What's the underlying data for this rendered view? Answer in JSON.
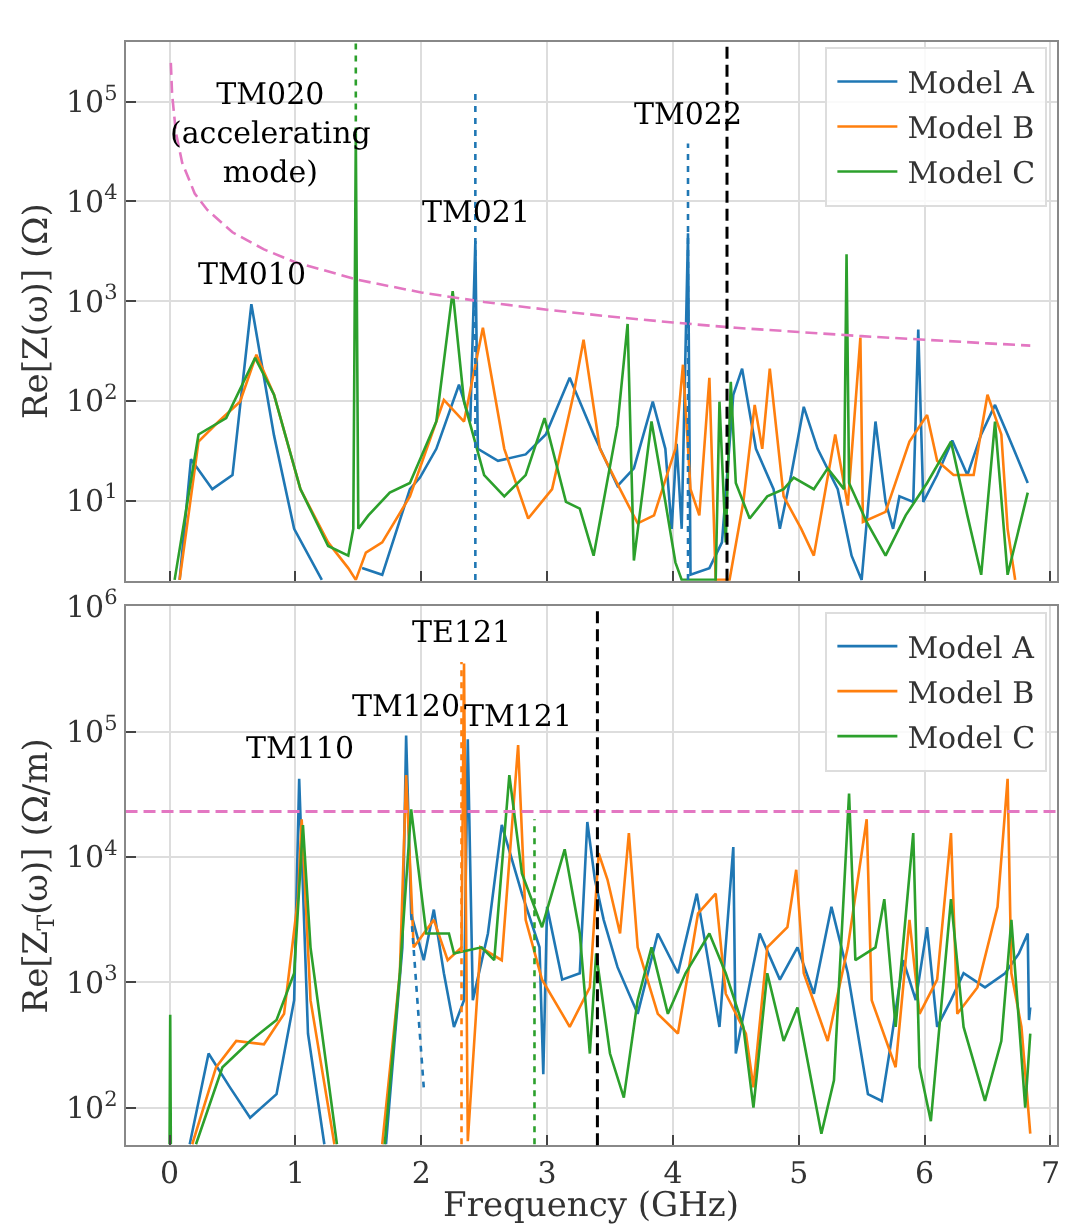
{
  "chart_data": [
    {
      "type": "line",
      "ylabel": "Re[Z(ω)] (Ω)",
      "log": "y",
      "grid": true,
      "legend": "top right",
      "tick_labels": "y",
      "xlim": [
        -0.35,
        7.05
      ],
      "ylim": [
        1.57,
        400000
      ],
      "xticks": [
        0,
        1,
        2,
        3,
        4,
        5,
        6,
        7
      ],
      "yticks": [
        {
          "value": 10,
          "label": "10$^{1}$"
        },
        {
          "value": 100,
          "label": "10$^{2}$"
        },
        {
          "value": 1000,
          "label": "10$^{3}$"
        },
        {
          "value": 10000,
          "label": "10$^{4}$"
        },
        {
          "value": 100000,
          "label": "10$^{5}$"
        }
      ],
      "ref_lines": [
        {
          "axis": "x",
          "value": 4.43,
          "label": null,
          "color": "#000000",
          "line_style": "dashed"
        }
      ],
      "annotations": [
        {
          "text": "TM010",
          "x": 0.65,
          "y": 930
        },
        {
          "text": "TM020\n(accelerating\nmode)",
          "x": 1.48,
          "y": 48000
        },
        {
          "text": "TM021",
          "x": 2.43,
          "y": 4000
        },
        {
          "text": "TM022",
          "x": 4.12,
          "y": 38000
        }
      ],
      "series": [
        {
          "name": "Model A",
          "color": "#1f77b4",
          "x": [
            0.08,
            0.17,
            0.34,
            0.5,
            0.65,
            0.83,
            0.99,
            1.21,
            1.4,
            1.53,
            1.69,
            1.91,
            1.99,
            2.12,
            2.3,
            2.39,
            2.43,
            2.45,
            2.61,
            2.83,
            2.99,
            3.18,
            3.37,
            3.56,
            3.69,
            3.84,
            3.94,
            3.99,
            4.03,
            4.07,
            4.12,
            4.14,
            4.29,
            4.39,
            4.48,
            4.55,
            4.66,
            4.8,
            4.85,
            4.94,
            5.04,
            5.15,
            5.31,
            5.42,
            5.5,
            5.61,
            5.69,
            5.75,
            5.8,
            5.91,
            5.95,
            5.99,
            6.1,
            6.22,
            6.34,
            6.45,
            6.56,
            6.66,
            6.82
          ],
          "values": [
            1.6,
            26,
            13,
            18,
            930,
            45,
            5.2,
            1.6,
            null,
            2.1,
            1.8,
            13,
            17,
            33,
            145,
            62,
            4000,
            33,
            25,
            29,
            46,
            170,
            46,
            14,
            21,
            98,
            33,
            5.2,
            37,
            5.2,
            4800,
            1.8,
            2.1,
            3.8,
            115,
            210,
            33,
            13,
            5.2,
            18,
            87,
            33,
            13,
            2.8,
            1.6,
            62,
            9.7,
            5.2,
            11,
            9.7,
            520,
            9.7,
            18,
            40,
            18,
            46,
            91,
            46,
            15
          ]
        },
        {
          "name": "Model B",
          "color": "#ff7f0e",
          "x": [
            0.08,
            0.23,
            0.39,
            0.56,
            0.69,
            0.83,
            1.04,
            1.26,
            1.42,
            1.48,
            1.56,
            1.69,
            1.91,
            2.18,
            2.34,
            2.49,
            2.66,
            2.85,
            3.04,
            3.21,
            3.29,
            3.42,
            3.58,
            3.72,
            3.85,
            4.02,
            4.08,
            4.14,
            4.21,
            4.29,
            4.34,
            4.45,
            4.56,
            4.65,
            4.71,
            4.77,
            4.88,
            5.02,
            5.12,
            5.29,
            5.39,
            5.49,
            5.51,
            5.69,
            5.88,
            6.02,
            6.1,
            6.23,
            6.39,
            6.5,
            6.61,
            6.66,
            6.72
          ],
          "values": [
            1.6,
            39,
            62,
            98,
            290,
            115,
            13,
            3.8,
            2.1,
            1.6,
            3.0,
            3.8,
            11,
            102,
            62,
            540,
            33,
            6.6,
            13,
            115,
            410,
            33,
            13,
            5.9,
            7.1,
            33,
            230,
            13,
            7.1,
            170,
            1.6,
            1.6,
            9.7,
            91,
            33,
            210,
            11,
            5.2,
            2.8,
            46,
            8.9,
            430,
            6.1,
            7.7,
            39,
            72,
            25,
            18,
            18,
            115,
            46,
            5.2,
            1.6
          ]
        },
        {
          "name": "Model C",
          "color": "#2ca02c",
          "x": [
            0.04,
            0.23,
            0.45,
            0.68,
            0.83,
            1.04,
            1.26,
            1.42,
            1.46,
            1.48,
            1.5,
            1.58,
            1.75,
            1.91,
            2.12,
            2.25,
            2.34,
            2.5,
            2.66,
            2.83,
            2.98,
            3.15,
            3.26,
            3.37,
            3.56,
            3.64,
            3.69,
            3.83,
            3.94,
            4.02,
            4.07,
            4.34,
            4.37,
            4.42,
            4.46,
            4.5,
            4.61,
            4.75,
            4.88,
            4.96,
            5.12,
            5.23,
            5.36,
            5.38,
            5.4,
            5.54,
            5.69,
            5.85,
            6.02,
            6.21,
            6.34,
            6.45,
            6.56,
            6.66,
            6.82
          ],
          "values": [
            1.6,
            46,
            67,
            270,
            115,
            13,
            3.5,
            2.8,
            5.2,
            48000,
            5.2,
            7.1,
            12,
            15,
            62,
            1260,
            98,
            18,
            11,
            18,
            67,
            9.7,
            8.3,
            2.8,
            57,
            590,
            2.5,
            62,
            9.7,
            2.4,
            1.6,
            1.6,
            98,
            3.8,
            155,
            15,
            6.6,
            11,
            13,
            17,
            13,
            21,
            13,
            2950,
            15,
            6.1,
            2.8,
            7.1,
            15,
            39,
            7.1,
            1.8,
            62,
            1.8,
            12
          ]
        },
        {
          "color": "#e377c2",
          "line_style": "dashed",
          "x": [
            0.01,
            0.02,
            0.05,
            0.1,
            0.2,
            0.3,
            0.5,
            0.75,
            1,
            1.5,
            2,
            2.5,
            3,
            3.5,
            4,
            4.5,
            5,
            5.5,
            6,
            6.5,
            6.84
          ],
          "values": [
            245000,
            120000,
            49000,
            24500,
            12000,
            8200,
            4900,
            3300,
            2450,
            1630,
            1220,
            980,
            820,
            700,
            610,
            540,
            490,
            445,
            410,
            377,
            358
          ]
        },
        {
          "color": "#2ca02c",
          "line_style": "dotted",
          "x": [
            1.48,
            1.48
          ],
          "values": [
            48000,
            390000
          ]
        },
        {
          "color": "#1f77b4",
          "line_style": "dotted",
          "x": [
            2.43,
            2.43
          ],
          "values": [
            1.6,
            120000
          ]
        },
        {
          "color": "#1f77b4",
          "line_style": "dotted",
          "x": [
            4.12,
            4.12
          ],
          "values": [
            1.6,
            38000
          ]
        }
      ]
    },
    {
      "type": "line",
      "xlabel": "Frequency (GHz)",
      "ylabel": "Re[Z$_{T}$(ω)] (Ω/m)",
      "log": "y",
      "grid": true,
      "legend": "top right",
      "xlim": [
        -0.35,
        7.05
      ],
      "ylim": [
        50,
        1000000
      ],
      "xticks": [
        0,
        1,
        2,
        3,
        4,
        5,
        6,
        7
      ],
      "yticks": [
        {
          "value": 100,
          "label": "10$^{2}$"
        },
        {
          "value": 1000,
          "label": "10$^{3}$"
        },
        {
          "value": 10000,
          "label": "10$^{4}$"
        },
        {
          "value": 100000,
          "label": "10$^{5}$"
        },
        {
          "value": 1000000,
          "label": "10$^{6}$"
        }
      ],
      "ref_lines": [
        {
          "axis": "x",
          "value": 3.4,
          "label": null,
          "color": "#000000",
          "line_style": "dashed"
        },
        {
          "axis": "y",
          "value": 23000,
          "label": null,
          "color": "#e377c2",
          "line_style": "dashed"
        }
      ],
      "annotations": [
        {
          "text": "TM110",
          "x": 1.03,
          "y": 42000
        },
        {
          "text": "TM120",
          "x": 1.88,
          "y": 93000
        },
        {
          "text": "TE121",
          "x": 2.32,
          "y": 360000
        },
        {
          "text": "TM121",
          "x": 2.77,
          "y": 78000
        }
      ],
      "series": [
        {
          "name": "Model A",
          "color": "#1f77b4",
          "x": [
            0.16,
            0.31,
            0.48,
            0.64,
            0.85,
            0.99,
            1.03,
            1.1,
            1.23,
            1.5,
            1.72,
            1.85,
            1.88,
            1.92,
            2.02,
            2.1,
            2.18,
            2.26,
            2.34,
            2.37,
            2.41,
            2.53,
            2.64,
            2.8,
            2.94,
            2.97,
            3.0,
            3.12,
            3.26,
            3.32,
            3.38,
            3.45,
            3.56,
            3.72,
            3.88,
            4.04,
            4.19,
            4.37,
            4.48,
            4.5,
            4.69,
            4.85,
            4.99,
            5.12,
            5.26,
            5.39,
            5.55,
            5.66,
            5.72,
            5.83,
            5.93,
            6.02,
            6.1,
            6.21,
            6.31,
            6.48,
            6.64,
            6.75,
            6.82,
            6.83,
            6.84
          ],
          "values": [
            51,
            270,
            145,
            83,
            128,
            720,
            42000,
            390,
            51,
            null,
            51,
            1900,
            93000,
            3500,
            1500,
            3800,
            1180,
            440,
            720,
            87000,
            720,
            2450,
            18000,
            5100,
            1900,
            185,
            4000,
            1050,
            1180,
            19000,
            6600,
            3150,
            1320,
            560,
            2450,
            1180,
            5100,
            440,
            12000,
            270,
            2450,
            1050,
            1900,
            810,
            4000,
            1180,
            128,
            113,
            270,
            1500,
            720,
            2750,
            440,
            720,
            1180,
            910,
            1180,
            1700,
            2450,
            500,
            630
          ]
        },
        {
          "name": "Model B",
          "color": "#ff7f0e",
          "x": [
            0.18,
            0.37,
            0.53,
            0.75,
            0.91,
            1.02,
            1.05,
            1.12,
            1.31,
            1.5,
            1.69,
            1.83,
            1.88,
            1.94,
            2.1,
            2.21,
            2.32,
            2.34,
            2.37,
            2.47,
            2.64,
            2.77,
            2.83,
            2.96,
            3.12,
            3.18,
            3.34,
            3.41,
            3.48,
            3.58,
            3.65,
            3.72,
            3.88,
            4.04,
            4.2,
            4.34,
            4.42,
            4.58,
            4.64,
            4.75,
            4.91,
            4.98,
            5.04,
            5.23,
            5.39,
            5.54,
            5.58,
            5.77,
            5.88,
            5.96,
            6.1,
            6.21,
            6.26,
            6.42,
            6.58,
            6.66,
            6.69,
            6.77,
            6.84
          ],
          "values": [
            51,
            210,
            340,
            320,
            560,
            4600,
            20000,
            720,
            51,
            null,
            51,
            1180,
            45000,
            1900,
            3150,
            1500,
            1900,
            350000,
            54,
            1900,
            1500,
            78000,
            3150,
            1050,
            560,
            440,
            910,
            10700,
            6600,
            2450,
            15500,
            1900,
            560,
            390,
            3550,
            5100,
            810,
            390,
            145,
            1900,
            2750,
            7900,
            1180,
            340,
            1900,
            20000,
            720,
            210,
            3150,
            560,
            1050,
            15500,
            560,
            910,
            4000,
            42000,
            1180,
            440,
            62
          ]
        },
        {
          "name": "Model C",
          "color": "#2ca02c",
          "x": [
            0.0,
            0.005,
            0.01,
            0.1,
            0.21,
            0.42,
            0.64,
            0.85,
            0.99,
            1.06,
            1.12,
            1.33,
            1.5,
            1.71,
            1.83,
            1.92,
            2.04,
            2.22,
            2.26,
            2.48,
            2.58,
            2.7,
            2.8,
            2.96,
            3.14,
            3.26,
            3.34,
            3.39,
            3.5,
            3.61,
            3.72,
            3.83,
            3.96,
            4.1,
            4.29,
            4.42,
            4.56,
            4.64,
            4.75,
            4.88,
            4.99,
            5.18,
            5.28,
            5.4,
            5.45,
            5.61,
            5.68,
            5.77,
            5.91,
            5.96,
            6.05,
            6.21,
            6.31,
            6.48,
            6.61,
            6.69,
            6.8,
            6.84
          ],
          "values": [
            51,
            550,
            51,
            null,
            51,
            210,
            340,
            500,
            1180,
            18000,
            1900,
            51,
            null,
            51,
            1180,
            24000,
            2450,
            2450,
            1700,
            1900,
            1500,
            45000,
            7400,
            2750,
            11500,
            2450,
            270,
            1700,
            270,
            120,
            720,
            1900,
            560,
            1180,
            2450,
            1180,
            440,
            100,
            1180,
            340,
            630,
            62,
            165,
            32000,
            1500,
            1900,
            4600,
            440,
            15500,
            210,
            78,
            4600,
            440,
            113,
            340,
            3150,
            100,
            390
          ]
        },
        {
          "color": "#1f77b4",
          "line_style": "dotted",
          "x": [
            1.92,
            1.97,
            2.02
          ],
          "values": [
            3500,
            700,
            145
          ]
        },
        {
          "color": "#ff7f0e",
          "line_style": "dotted",
          "x": [
            2.32,
            2.32
          ],
          "values": [
            51,
            360000
          ]
        },
        {
          "color": "#2ca02c",
          "line_style": "dotted",
          "x": [
            2.9,
            2.9
          ],
          "values": [
            51,
            20000
          ]
        }
      ]
    }
  ]
}
